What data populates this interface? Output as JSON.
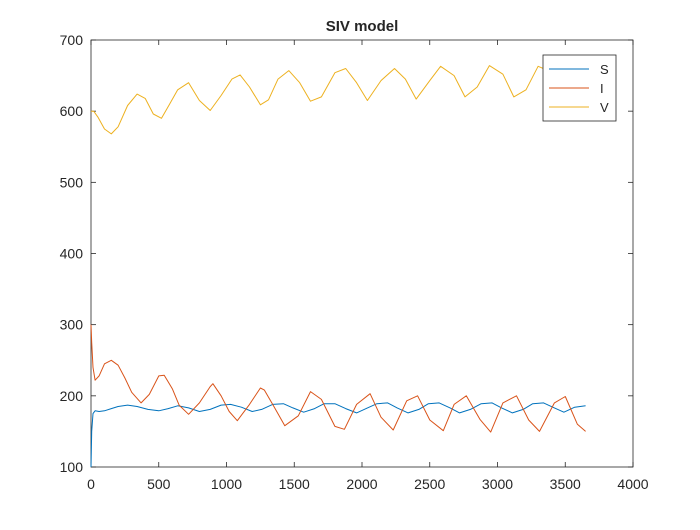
{
  "chart_data": {
    "type": "line",
    "title": "SIV model",
    "xlabel": "",
    "ylabel": "",
    "xlim": [
      0,
      4000
    ],
    "ylim": [
      100,
      700
    ],
    "xticks": [
      0,
      500,
      1000,
      1500,
      2000,
      2500,
      3000,
      3500,
      4000
    ],
    "yticks": [
      100,
      200,
      300,
      400,
      500,
      600,
      700
    ],
    "xtick_labels": [
      "0",
      "500",
      "1000",
      "1500",
      "2000",
      "2500",
      "3000",
      "3500",
      "4000"
    ],
    "ytick_labels": [
      "100",
      "200",
      "300",
      "400",
      "500",
      "600",
      "700"
    ],
    "grid": false,
    "legend_position": "top-right",
    "series": [
      {
        "name": "S",
        "color": "#0072BD",
        "x": [
          0,
          5,
          15,
          30,
          60,
          100,
          150,
          200,
          270,
          340,
          420,
          500,
          570,
          640,
          720,
          800,
          880,
          960,
          1030,
          1110,
          1190,
          1260,
          1340,
          1420,
          1490,
          1570,
          1650,
          1720,
          1800,
          1880,
          1960,
          2030,
          2110,
          2190,
          2260,
          2340,
          2420,
          2490,
          2570,
          2650,
          2720,
          2800,
          2880,
          2960,
          3030,
          3110,
          3190,
          3260,
          3340,
          3420,
          3490,
          3570,
          3650
        ],
        "y": [
          100,
          150,
          175,
          179,
          178,
          179,
          182,
          185,
          187,
          185,
          181,
          179,
          182,
          186,
          183,
          178,
          181,
          187,
          188,
          184,
          178,
          181,
          188,
          189,
          183,
          177,
          182,
          189,
          189,
          182,
          176,
          182,
          189,
          190,
          183,
          176,
          181,
          189,
          190,
          183,
          176,
          181,
          189,
          190,
          183,
          176,
          181,
          189,
          190,
          183,
          177,
          184,
          186
        ]
      },
      {
        "name": "I",
        "color": "#D95319",
        "x": [
          0,
          5,
          15,
          30,
          60,
          100,
          150,
          200,
          250,
          300,
          370,
          430,
          500,
          540,
          600,
          650,
          720,
          800,
          880,
          900,
          960,
          1020,
          1080,
          1170,
          1250,
          1280,
          1350,
          1430,
          1530,
          1620,
          1700,
          1800,
          1870,
          1960,
          2060,
          2140,
          2230,
          2330,
          2410,
          2500,
          2600,
          2680,
          2770,
          2870,
          2950,
          3040,
          3140,
          3230,
          3310,
          3420,
          3500,
          3590,
          3650
        ],
        "y": [
          300,
          275,
          240,
          222,
          228,
          245,
          250,
          243,
          225,
          205,
          190,
          202,
          228,
          229,
          210,
          187,
          174,
          190,
          213,
          217,
          200,
          178,
          165,
          188,
          211,
          208,
          185,
          158,
          172,
          206,
          195,
          157,
          153,
          188,
          203,
          170,
          152,
          193,
          200,
          166,
          151,
          188,
          200,
          167,
          149,
          190,
          200,
          166,
          150,
          190,
          199,
          160,
          150
        ]
      },
      {
        "name": "V",
        "color": "#EDB120",
        "x": [
          0,
          20,
          50,
          100,
          150,
          200,
          270,
          340,
          400,
          460,
          520,
          580,
          640,
          720,
          800,
          880,
          960,
          1040,
          1100,
          1170,
          1250,
          1310,
          1380,
          1460,
          1540,
          1620,
          1700,
          1800,
          1880,
          1960,
          2040,
          2140,
          2240,
          2320,
          2400,
          2500,
          2580,
          2680,
          2760,
          2850,
          2940,
          3040,
          3120,
          3210,
          3300,
          3400,
          3460,
          3560,
          3650
        ],
        "y": [
          600,
          600,
          592,
          575,
          568,
          578,
          608,
          624,
          618,
          596,
          590,
          610,
          630,
          640,
          615,
          601,
          622,
          645,
          651,
          634,
          609,
          616,
          645,
          657,
          640,
          614,
          620,
          654,
          660,
          640,
          615,
          643,
          660,
          645,
          617,
          643,
          663,
          650,
          620,
          634,
          664,
          652,
          620,
          630,
          663,
          655,
          633,
          640,
          660
        ]
      }
    ]
  }
}
